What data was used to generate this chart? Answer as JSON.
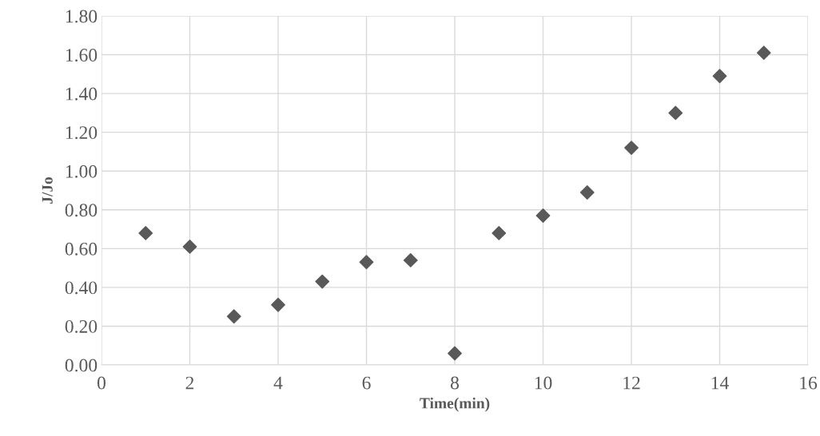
{
  "chart_data": {
    "type": "scatter",
    "xlabel": "Time(min)",
    "ylabel": "J/Jo",
    "x": [
      1,
      2,
      3,
      4,
      5,
      6,
      7,
      8,
      9,
      10,
      11,
      12,
      13,
      14,
      15
    ],
    "series": [
      {
        "color": "#595959",
        "values": [
          0.68,
          0.61,
          0.25,
          0.31,
          0.43,
          0.53,
          0.54,
          0.06,
          0.68,
          0.77,
          0.89,
          1.12,
          1.3,
          1.49,
          1.61
        ]
      }
    ],
    "xlim": [
      0,
      16
    ],
    "xticks": [
      0,
      2,
      4,
      6,
      8,
      10,
      12,
      14,
      16
    ],
    "ylim": [
      0,
      1.8
    ],
    "yticks": [
      {
        "value": 0,
        "label": "0.00"
      },
      {
        "value": 0.2,
        "label": "0.20"
      },
      {
        "value": 0.4,
        "label": "0.40"
      },
      {
        "value": 0.6,
        "label": "0.60"
      },
      {
        "value": 0.8,
        "label": "0.80"
      },
      {
        "value": 1.0,
        "label": "1.00"
      },
      {
        "value": 1.2,
        "label": "1.20"
      },
      {
        "value": 1.4,
        "label": "1.40"
      },
      {
        "value": 1.6,
        "label": "1.60"
      },
      {
        "value": 1.8,
        "label": "1.80"
      }
    ],
    "grid": true,
    "marker": "diamond",
    "legend": false
  }
}
